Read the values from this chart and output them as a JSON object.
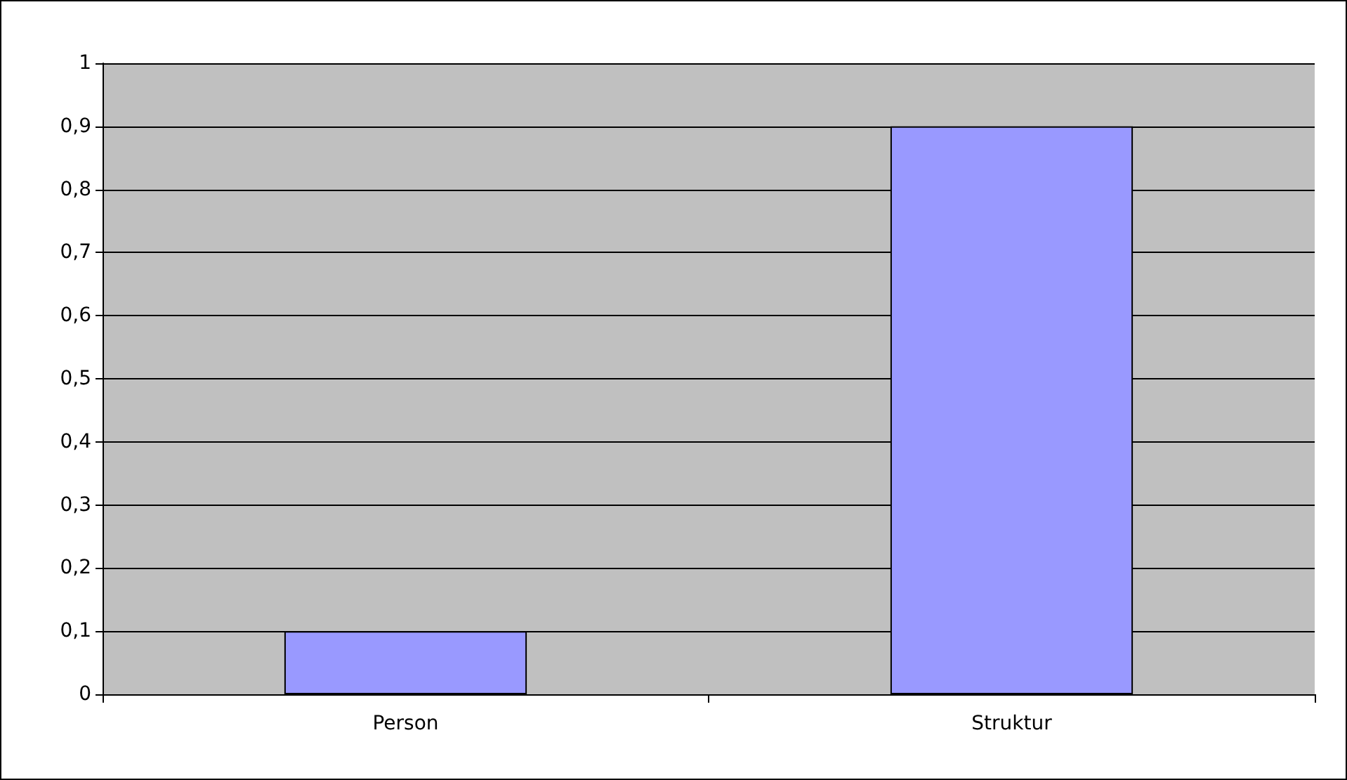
{
  "chart_data": {
    "type": "bar",
    "categories": [
      "Person",
      "Struktur"
    ],
    "values": [
      0.1,
      0.9
    ],
    "color": "#9999ff",
    "ylim": [
      0,
      1
    ],
    "yticks": [
      0,
      {
        "value": 0.1,
        "label": "0,1"
      },
      {
        "value": 0.2,
        "label": "0,2"
      },
      {
        "value": 0.3,
        "label": "0,3"
      },
      {
        "value": 0.4,
        "label": "0,4"
      },
      {
        "value": 0.5,
        "label": "0,5"
      },
      {
        "value": 0.6,
        "label": "0,6"
      },
      {
        "value": 0.7,
        "label": "0,7"
      },
      {
        "value": 0.8,
        "label": "0,8"
      },
      {
        "value": 0.9,
        "label": "0,9"
      },
      1
    ],
    "grid": "y"
  }
}
